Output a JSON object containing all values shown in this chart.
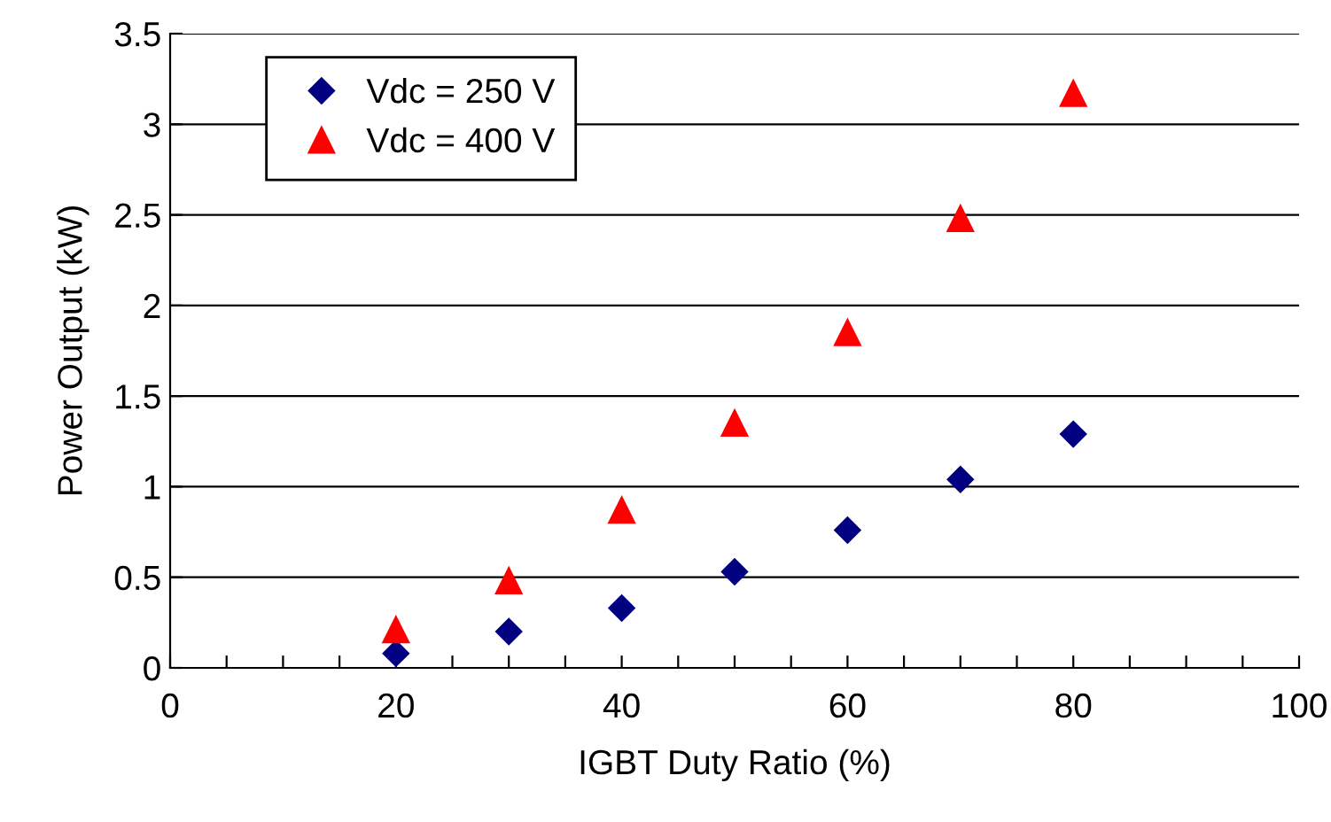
{
  "chart_data": {
    "type": "scatter",
    "xlabel": "IGBT Duty Ratio (%)",
    "ylabel": "Power Output (kW)",
    "x": [
      20,
      30,
      40,
      50,
      60,
      70,
      80
    ],
    "series": [
      {
        "name": "Vdc = 250 V",
        "color": "#000080",
        "marker": "diamond",
        "values": [
          0.08,
          0.2,
          0.33,
          0.53,
          0.76,
          1.04,
          1.29
        ]
      },
      {
        "name": "Vdc = 400 V",
        "color": "#ff0000",
        "marker": "triangle",
        "values": [
          0.21,
          0.48,
          0.87,
          1.35,
          1.85,
          2.48,
          3.17
        ]
      }
    ],
    "xlim": [
      0,
      100
    ],
    "ylim": [
      0,
      3.5
    ],
    "xticks": [
      0,
      {
        "value": 5,
        "label": null
      },
      {
        "value": 10,
        "label": null
      },
      {
        "value": 15,
        "label": null
      },
      20,
      {
        "value": 25,
        "label": null
      },
      {
        "value": 30,
        "label": null
      },
      {
        "value": 35,
        "label": null
      },
      40,
      {
        "value": 45,
        "label": null
      },
      {
        "value": 50,
        "label": null
      },
      {
        "value": 55,
        "label": null
      },
      60,
      {
        "value": 65,
        "label": null
      },
      {
        "value": 70,
        "label": null
      },
      {
        "value": 75,
        "label": null
      },
      80,
      {
        "value": 85,
        "label": null
      },
      {
        "value": 90,
        "label": null
      },
      {
        "value": 95,
        "label": null
      },
      100
    ],
    "yticks": [
      0,
      0.5,
      1,
      1.5,
      2,
      2.5,
      3,
      3.5
    ],
    "grid": "y",
    "legend": "top left"
  }
}
